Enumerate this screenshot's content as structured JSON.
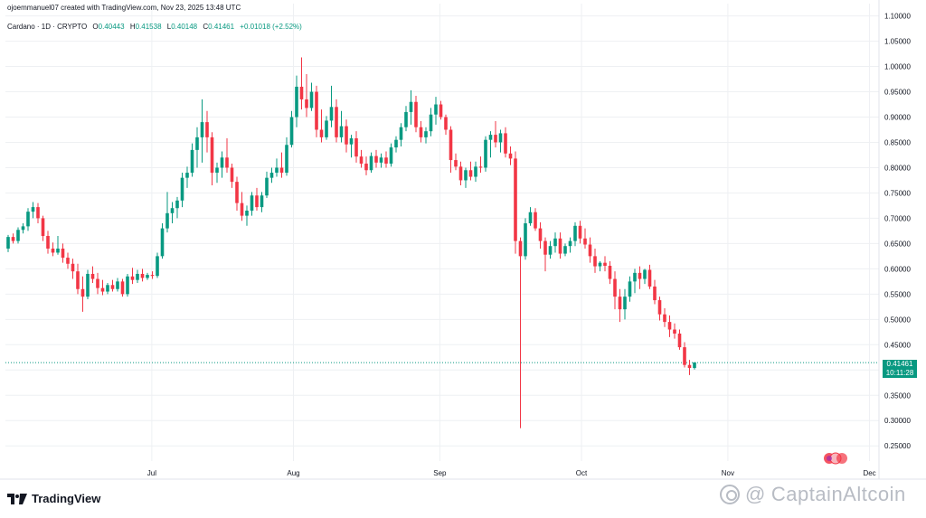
{
  "header": {
    "attribution": "ojoemmanuel07 created with TradingView.com, Nov 23, 2025 13:48 UTC",
    "symbol": "Cardano · 1D · CRYPTO",
    "open_label": "O",
    "open": "0.40443",
    "high_label": "H",
    "high": "0.41538",
    "low_label": "L",
    "low": "0.40148",
    "close_label": "C",
    "close": "0.41461",
    "change": "+0.01018 (+2.52%)"
  },
  "price_tag": {
    "price": "0.41461",
    "countdown": "10:11:28"
  },
  "brand": {
    "name": "TradingView"
  },
  "watermark": {
    "text": "CaptainAltcoin"
  },
  "colors": {
    "up": "#089981",
    "down": "#f23645",
    "grid": "#eef0f3",
    "axis_text": "#131722",
    "current_line": "#089981"
  },
  "chart_data": {
    "type": "candlestick",
    "title": "Cardano · 1D · CRYPTO",
    "xlabel": "",
    "ylabel": "",
    "ylim": [
      0.22,
      1.11
    ],
    "yticks": [
      "1.10000",
      "1.05000",
      "1.00000",
      "0.95000",
      "0.90000",
      "0.85000",
      "0.80000",
      "0.75000",
      "0.70000",
      "0.65000",
      "0.60000",
      "0.55000",
      "0.50000",
      "0.45000",
      "0.40000",
      "0.35000",
      "0.30000",
      "0.25000"
    ],
    "ytick_values": [
      1.1,
      1.05,
      1.0,
      0.95,
      0.9,
      0.85,
      0.8,
      0.75,
      0.7,
      0.65,
      0.6,
      0.55,
      0.5,
      0.45,
      0.4,
      0.35,
      0.3,
      0.25
    ],
    "xticks": [
      {
        "label": "Jul",
        "day": 31
      },
      {
        "label": "Aug",
        "day": 61
      },
      {
        "label": "Sep",
        "day": 92
      },
      {
        "label": "Oct",
        "day": 122
      },
      {
        "label": "Nov",
        "day": 153
      },
      {
        "label": "Dec",
        "day": 183
      }
    ],
    "x_domain": [
      0,
      185
    ],
    "current_price": 0.41461,
    "candles": [
      [
        0.64,
        0.667,
        0.633,
        0.663
      ],
      [
        0.663,
        0.67,
        0.65,
        0.655
      ],
      [
        0.655,
        0.682,
        0.65,
        0.677
      ],
      [
        0.677,
        0.69,
        0.67,
        0.684
      ],
      [
        0.684,
        0.72,
        0.675,
        0.713
      ],
      [
        0.713,
        0.732,
        0.7,
        0.722
      ],
      [
        0.722,
        0.73,
        0.69,
        0.7
      ],
      [
        0.7,
        0.705,
        0.655,
        0.665
      ],
      [
        0.665,
        0.675,
        0.63,
        0.64
      ],
      [
        0.64,
        0.652,
        0.625,
        0.632
      ],
      [
        0.632,
        0.665,
        0.628,
        0.64
      ],
      [
        0.64,
        0.65,
        0.612,
        0.622
      ],
      [
        0.622,
        0.632,
        0.6,
        0.61
      ],
      [
        0.61,
        0.62,
        0.58,
        0.595
      ],
      [
        0.595,
        0.61,
        0.55,
        0.56
      ],
      [
        0.56,
        0.585,
        0.515,
        0.545
      ],
      [
        0.545,
        0.598,
        0.54,
        0.59
      ],
      [
        0.59,
        0.605,
        0.572,
        0.58
      ],
      [
        0.58,
        0.592,
        0.55,
        0.562
      ],
      [
        0.562,
        0.578,
        0.548,
        0.555
      ],
      [
        0.555,
        0.572,
        0.55,
        0.568
      ],
      [
        0.568,
        0.578,
        0.555,
        0.56
      ],
      [
        0.56,
        0.582,
        0.555,
        0.575
      ],
      [
        0.575,
        0.58,
        0.545,
        0.55
      ],
      [
        0.55,
        0.59,
        0.545,
        0.585
      ],
      [
        0.585,
        0.602,
        0.57,
        0.578
      ],
      [
        0.578,
        0.598,
        0.572,
        0.59
      ],
      [
        0.59,
        0.6,
        0.575,
        0.582
      ],
      [
        0.582,
        0.592,
        0.578,
        0.588
      ],
      [
        0.588,
        0.595,
        0.58,
        0.586
      ],
      [
        0.586,
        0.632,
        0.582,
        0.625
      ],
      [
        0.625,
        0.69,
        0.62,
        0.68
      ],
      [
        0.68,
        0.752,
        0.672,
        0.71
      ],
      [
        0.71,
        0.732,
        0.69,
        0.72
      ],
      [
        0.72,
        0.742,
        0.7,
        0.735
      ],
      [
        0.735,
        0.79,
        0.722,
        0.78
      ],
      [
        0.78,
        0.802,
        0.76,
        0.79
      ],
      [
        0.79,
        0.848,
        0.782,
        0.835
      ],
      [
        0.835,
        0.88,
        0.8,
        0.86
      ],
      [
        0.86,
        0.935,
        0.81,
        0.89
      ],
      [
        0.89,
        0.912,
        0.83,
        0.86
      ],
      [
        0.86,
        0.87,
        0.765,
        0.79
      ],
      [
        0.79,
        0.81,
        0.77,
        0.8
      ],
      [
        0.8,
        0.832,
        0.78,
        0.82
      ],
      [
        0.82,
        0.858,
        0.79,
        0.8
      ],
      [
        0.8,
        0.808,
        0.76,
        0.772
      ],
      [
        0.772,
        0.782,
        0.715,
        0.73
      ],
      [
        0.73,
        0.752,
        0.695,
        0.705
      ],
      [
        0.705,
        0.725,
        0.685,
        0.715
      ],
      [
        0.715,
        0.752,
        0.705,
        0.745
      ],
      [
        0.745,
        0.76,
        0.715,
        0.722
      ],
      [
        0.722,
        0.752,
        0.712,
        0.745
      ],
      [
        0.745,
        0.792,
        0.74,
        0.78
      ],
      [
        0.78,
        0.8,
        0.77,
        0.79
      ],
      [
        0.79,
        0.818,
        0.782,
        0.8
      ],
      [
        0.8,
        0.83,
        0.78,
        0.79
      ],
      [
        0.79,
        0.86,
        0.784,
        0.845
      ],
      [
        0.845,
        0.912,
        0.84,
        0.9
      ],
      [
        0.9,
        0.982,
        0.88,
        0.96
      ],
      [
        0.96,
        1.018,
        0.915,
        0.935
      ],
      [
        0.935,
        0.985,
        0.9,
        0.918
      ],
      [
        0.918,
        0.968,
        0.912,
        0.95
      ],
      [
        0.95,
        0.962,
        0.86,
        0.875
      ],
      [
        0.875,
        0.915,
        0.85,
        0.86
      ],
      [
        0.86,
        0.902,
        0.855,
        0.893
      ],
      [
        0.893,
        0.962,
        0.88,
        0.92
      ],
      [
        0.92,
        0.935,
        0.85,
        0.86
      ],
      [
        0.86,
        0.912,
        0.85,
        0.882
      ],
      [
        0.882,
        0.895,
        0.83,
        0.846
      ],
      [
        0.846,
        0.865,
        0.82,
        0.858
      ],
      [
        0.858,
        0.872,
        0.81,
        0.822
      ],
      [
        0.822,
        0.835,
        0.8,
        0.808
      ],
      [
        0.808,
        0.822,
        0.785,
        0.795
      ],
      [
        0.795,
        0.83,
        0.79,
        0.823
      ],
      [
        0.823,
        0.835,
        0.8,
        0.81
      ],
      [
        0.81,
        0.828,
        0.8,
        0.82
      ],
      [
        0.82,
        0.832,
        0.8,
        0.808
      ],
      [
        0.808,
        0.848,
        0.802,
        0.84
      ],
      [
        0.84,
        0.862,
        0.83,
        0.855
      ],
      [
        0.855,
        0.888,
        0.842,
        0.88
      ],
      [
        0.88,
        0.922,
        0.872,
        0.91
      ],
      [
        0.91,
        0.953,
        0.885,
        0.93
      ],
      [
        0.93,
        0.942,
        0.87,
        0.88
      ],
      [
        0.88,
        0.892,
        0.85,
        0.86
      ],
      [
        0.86,
        0.88,
        0.848,
        0.872
      ],
      [
        0.872,
        0.918,
        0.862,
        0.905
      ],
      [
        0.905,
        0.94,
        0.885,
        0.925
      ],
      [
        0.925,
        0.932,
        0.895,
        0.9
      ],
      [
        0.9,
        0.905,
        0.865,
        0.875
      ],
      [
        0.875,
        0.882,
        0.79,
        0.815
      ],
      [
        0.815,
        0.828,
        0.795,
        0.802
      ],
      [
        0.802,
        0.812,
        0.765,
        0.775
      ],
      [
        0.775,
        0.8,
        0.76,
        0.795
      ],
      [
        0.795,
        0.812,
        0.775,
        0.782
      ],
      [
        0.782,
        0.812,
        0.772,
        0.802
      ],
      [
        0.802,
        0.822,
        0.79,
        0.8
      ],
      [
        0.8,
        0.862,
        0.792,
        0.855
      ],
      [
        0.855,
        0.872,
        0.82,
        0.865
      ],
      [
        0.865,
        0.892,
        0.84,
        0.85
      ],
      [
        0.85,
        0.875,
        0.83,
        0.868
      ],
      [
        0.868,
        0.88,
        0.82,
        0.828
      ],
      [
        0.828,
        0.842,
        0.805,
        0.818
      ],
      [
        0.818,
        0.832,
        0.63,
        0.655
      ],
      [
        0.655,
        0.662,
        0.285,
        0.625
      ],
      [
        0.625,
        0.7,
        0.618,
        0.69
      ],
      [
        0.69,
        0.722,
        0.685,
        0.712
      ],
      [
        0.712,
        0.72,
        0.675,
        0.68
      ],
      [
        0.68,
        0.692,
        0.64,
        0.655
      ],
      [
        0.655,
        0.662,
        0.595,
        0.628
      ],
      [
        0.628,
        0.655,
        0.62,
        0.645
      ],
      [
        0.645,
        0.672,
        0.632,
        0.66
      ],
      [
        0.66,
        0.672,
        0.62,
        0.63
      ],
      [
        0.63,
        0.65,
        0.625,
        0.645
      ],
      [
        0.645,
        0.662,
        0.632,
        0.655
      ],
      [
        0.655,
        0.692,
        0.645,
        0.685
      ],
      [
        0.685,
        0.695,
        0.65,
        0.66
      ],
      [
        0.66,
        0.68,
        0.64,
        0.648
      ],
      [
        0.648,
        0.662,
        0.612,
        0.625
      ],
      [
        0.625,
        0.64,
        0.592,
        0.605
      ],
      [
        0.605,
        0.615,
        0.595,
        0.612
      ],
      [
        0.612,
        0.625,
        0.595,
        0.606
      ],
      [
        0.606,
        0.615,
        0.57,
        0.58
      ],
      [
        0.58,
        0.595,
        0.52,
        0.545
      ],
      [
        0.545,
        0.56,
        0.495,
        0.52
      ],
      [
        0.52,
        0.56,
        0.5,
        0.545
      ],
      [
        0.545,
        0.585,
        0.535,
        0.575
      ],
      [
        0.575,
        0.6,
        0.552,
        0.592
      ],
      [
        0.592,
        0.605,
        0.56,
        0.58
      ],
      [
        0.58,
        0.6,
        0.57,
        0.598
      ],
      [
        0.598,
        0.608,
        0.56,
        0.565
      ],
      [
        0.565,
        0.578,
        0.53,
        0.538
      ],
      [
        0.538,
        0.545,
        0.498,
        0.51
      ],
      [
        0.51,
        0.522,
        0.485,
        0.495
      ],
      [
        0.495,
        0.508,
        0.465,
        0.48
      ],
      [
        0.48,
        0.492,
        0.462,
        0.472
      ],
      [
        0.472,
        0.48,
        0.44,
        0.445
      ],
      [
        0.445,
        0.455,
        0.405,
        0.41
      ],
      [
        0.41,
        0.42,
        0.39,
        0.404
      ],
      [
        0.404,
        0.415,
        0.401,
        0.415
      ]
    ]
  }
}
